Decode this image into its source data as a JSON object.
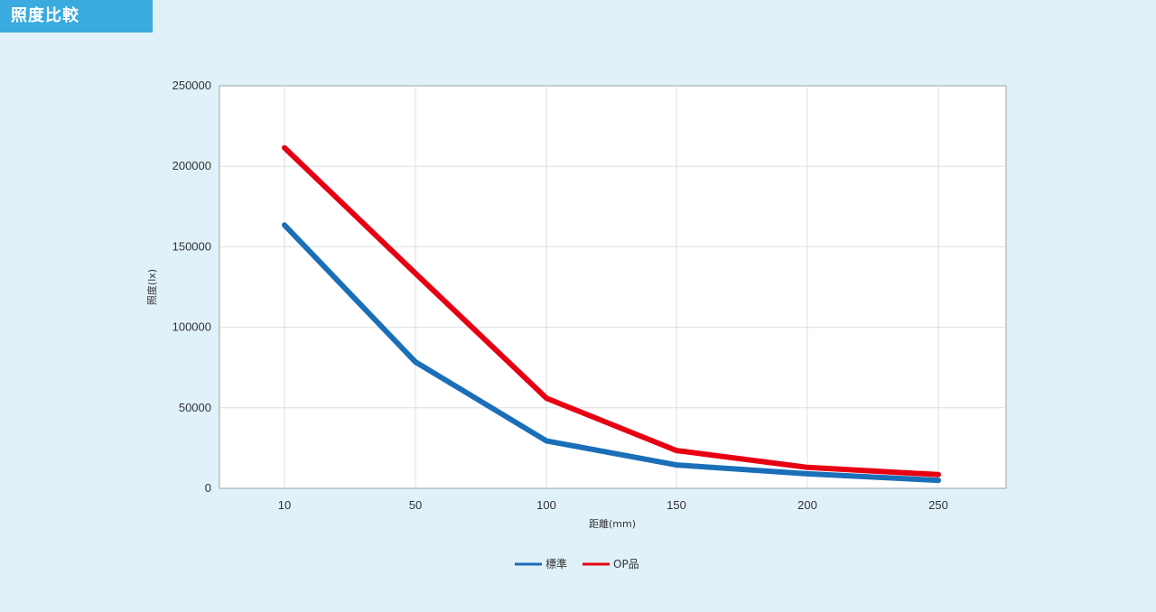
{
  "header": {
    "title": "照度比較"
  },
  "chart_data": {
    "type": "line",
    "categories": [
      "10",
      "50",
      "100",
      "150",
      "200",
      "250"
    ],
    "series": [
      {
        "name": "標準",
        "color": "#1a6fb8",
        "values": [
          163500,
          78500,
          29500,
          14500,
          9000,
          5000
        ]
      },
      {
        "name": "OP品",
        "color": "#e60012",
        "values": [
          211500,
          133500,
          56000,
          23500,
          13000,
          8500
        ]
      }
    ],
    "xlabel": "距離(mm)",
    "ylabel": "照度(lx)",
    "ylim": [
      0,
      250000
    ],
    "yticks": [
      0,
      50000,
      100000,
      150000,
      200000,
      250000
    ],
    "grid": true,
    "legend_position": "bottom-center"
  }
}
